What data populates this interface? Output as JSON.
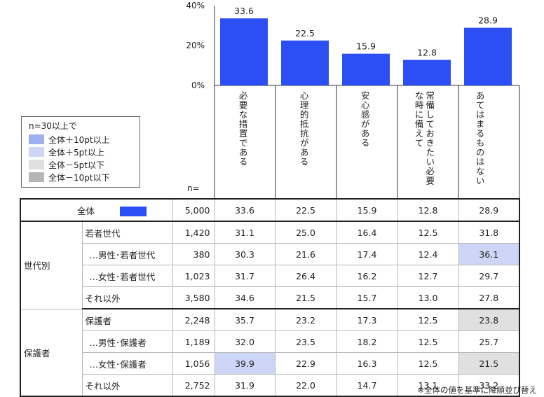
{
  "colors": {
    "bar": "#2b4ff5",
    "plus10": "#9fb0ee",
    "plus5": "#cdd6f7",
    "minus5": "#e0e0e0",
    "minus10": "#b6b6b6"
  },
  "chart_data": {
    "type": "bar",
    "categories": [
      "必要な措置である",
      "心理的抵抗がある",
      "安心感がある",
      "常備しておきたい必要な時に備えて",
      "あてはまるものはない"
    ],
    "values": [
      33.6,
      22.5,
      15.9,
      12.8,
      28.9
    ],
    "ylim": [
      0,
      40
    ],
    "yticks": [
      "0%",
      "20%",
      "40%"
    ]
  },
  "legend": {
    "title": "n=30以上で",
    "items": [
      "全体＋10pt以上",
      "全体＋5pt以上",
      "全体－5pt以下",
      "全体－10pt以下"
    ]
  },
  "table": {
    "n_header": "n=",
    "total": {
      "label": "全体",
      "n": "5,000",
      "values": [
        "33.6",
        "22.5",
        "15.9",
        "12.8",
        "28.9"
      ]
    },
    "groups": [
      {
        "label": "世代別",
        "rows": [
          {
            "label": "若者世代",
            "n": "1,420",
            "values": [
              "31.1",
              "25.0",
              "16.4",
              "12.5",
              "31.8"
            ],
            "hl": [
              "",
              "",
              "",
              "",
              ""
            ]
          },
          {
            "label": "…男性･若者世代",
            "n": "380",
            "values": [
              "30.3",
              "21.6",
              "17.4",
              "12.4",
              "36.1"
            ],
            "hl": [
              "",
              "",
              "",
              "",
              "plus5"
            ]
          },
          {
            "label": "…女性･若者世代",
            "n": "1,023",
            "values": [
              "31.7",
              "26.4",
              "16.2",
              "12.7",
              "29.7"
            ],
            "hl": [
              "",
              "",
              "",
              "",
              ""
            ]
          },
          {
            "label": "それ以外",
            "n": "3,580",
            "values": [
              "34.6",
              "21.5",
              "15.7",
              "13.0",
              "27.8"
            ],
            "hl": [
              "",
              "",
              "",
              "",
              ""
            ]
          }
        ]
      },
      {
        "label": "保護者",
        "rows": [
          {
            "label": "保護者",
            "n": "2,248",
            "values": [
              "35.7",
              "23.2",
              "17.3",
              "12.5",
              "23.8"
            ],
            "hl": [
              "",
              "",
              "",
              "",
              "minus5"
            ]
          },
          {
            "label": "…男性･保護者",
            "n": "1,189",
            "values": [
              "32.0",
              "23.5",
              "18.2",
              "12.5",
              "25.7"
            ],
            "hl": [
              "",
              "",
              "",
              "",
              ""
            ]
          },
          {
            "label": "…女性･保護者",
            "n": "1,056",
            "values": [
              "39.9",
              "22.9",
              "16.3",
              "12.5",
              "21.5"
            ],
            "hl": [
              "plus5",
              "",
              "",
              "",
              "minus5"
            ]
          },
          {
            "label": "それ以外",
            "n": "2,752",
            "values": [
              "31.9",
              "22.0",
              "14.7",
              "13.1",
              "33.2"
            ],
            "hl": [
              "",
              "",
              "",
              "",
              ""
            ]
          }
        ]
      }
    ]
  },
  "footnote": "※全体の値を基準に降順並び替え"
}
